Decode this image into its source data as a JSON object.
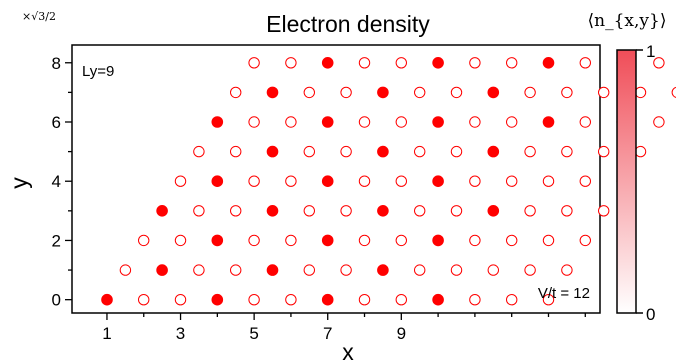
{
  "chart_data": {
    "type": "scatter",
    "title": "Electron density",
    "xlabel": "x",
    "ylabel": "y",
    "y_scale_label": "×√3/2",
    "x_ticks": [
      1,
      3,
      5,
      7,
      9
    ],
    "y_ticks": [
      0,
      2,
      4,
      6,
      8
    ],
    "xlim": [
      0.05,
      14.4
    ],
    "ylim": [
      -0.45,
      8.6
    ],
    "annotations": {
      "ly": "Ly=9",
      "vt": "V/t = 12"
    },
    "colorbar": {
      "label": "⟨n_{x,y}⟩",
      "min": 0,
      "max": 1,
      "min_label": "0",
      "max_label": "1",
      "color_high": "#f04d58",
      "color_low": "#ffffff"
    },
    "marker_color": "#ff0000",
    "lattice": {
      "rows": 9,
      "cols": 13,
      "row_x_shift": 0.5
    },
    "occupied": [
      [
        1,
        0
      ],
      [
        4,
        0
      ],
      [
        7,
        0
      ],
      [
        10,
        0
      ],
      [
        2.5,
        1
      ],
      [
        5.5,
        1
      ],
      [
        8.5,
        1
      ],
      [
        4,
        2
      ],
      [
        7,
        2
      ],
      [
        10,
        2
      ],
      [
        2.5,
        3
      ],
      [
        5.5,
        3
      ],
      [
        8.5,
        3
      ],
      [
        11.5,
        3
      ],
      [
        4,
        4
      ],
      [
        7,
        4
      ],
      [
        10,
        4
      ],
      [
        5.5,
        5
      ],
      [
        8.5,
        5
      ],
      [
        11.5,
        5
      ],
      [
        4,
        6
      ],
      [
        7,
        6
      ],
      [
        10,
        6
      ],
      [
        13,
        6
      ],
      [
        5.5,
        7
      ],
      [
        8.5,
        7
      ],
      [
        11.5,
        7
      ],
      [
        7,
        8
      ],
      [
        10,
        8
      ],
      [
        13,
        8
      ]
    ]
  }
}
